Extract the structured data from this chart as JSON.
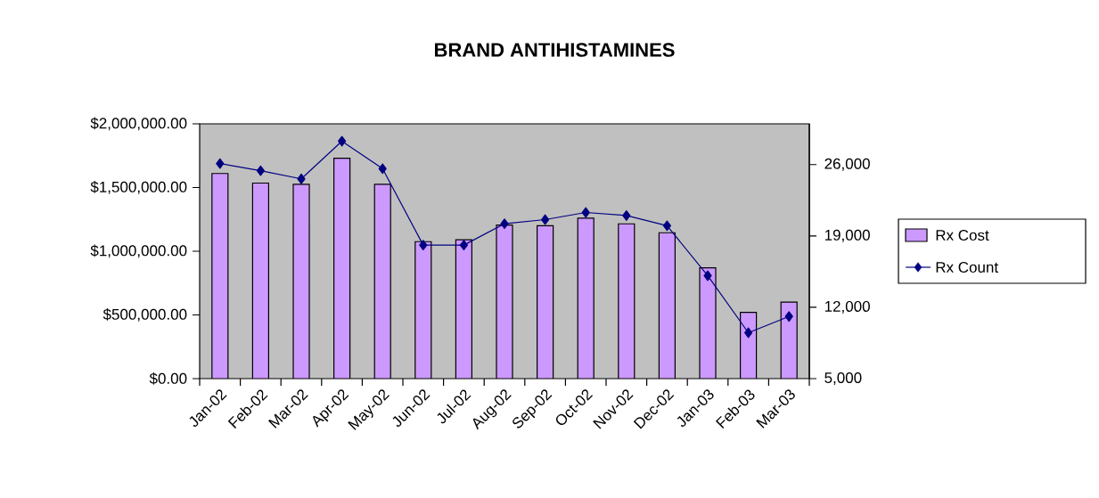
{
  "chart_data": {
    "type": "bar",
    "title": "BRAND ANTIHISTAMINES",
    "categories": [
      "Jan-02",
      "Feb-02",
      "Mar-02",
      "Apr-02",
      "May-02",
      "Jun-02",
      "Jul-02",
      "Aug-02",
      "Sep-02",
      "Oct-02",
      "Nov-02",
      "Dec-02",
      "Jan-03",
      "Feb-03",
      "Mar-03"
    ],
    "series": [
      {
        "name": "Rx Cost",
        "color": "#cc99ff",
        "values": [
          1610000,
          1535000,
          1525000,
          1730000,
          1525000,
          1075000,
          1090000,
          1205000,
          1200000,
          1260000,
          1215000,
          1145000,
          870000,
          520000,
          600000
        ]
      },
      {
        "name": "Rx Count",
        "type": "line",
        "axis": "y2",
        "color": "#000080",
        "marker": "diamond",
        "values": [
          26100,
          25400,
          24600,
          28300,
          25600,
          18100,
          18100,
          20200,
          20600,
          21300,
          21000,
          20000,
          15100,
          9500,
          11100
        ]
      }
    ],
    "ylim": [
      0,
      2000000
    ],
    "yticks": [
      {
        "value": 0,
        "label": "$0.00"
      },
      {
        "value": 500000,
        "label": "$500,000.00"
      },
      {
        "value": 1000000,
        "label": "$1,000,000.00"
      },
      {
        "value": 1500000,
        "label": "$1,500,000.00"
      },
      {
        "value": 2000000,
        "label": "$2,000,000.00"
      }
    ],
    "y2lim": [
      5000,
      30000
    ],
    "y2ticks": [
      {
        "value": 5000,
        "label": "5,000"
      },
      {
        "value": 12000,
        "label": "12,000"
      },
      {
        "value": 19000,
        "label": "19,000"
      },
      {
        "value": 26000,
        "label": "26,000"
      }
    ],
    "legend": "right"
  }
}
